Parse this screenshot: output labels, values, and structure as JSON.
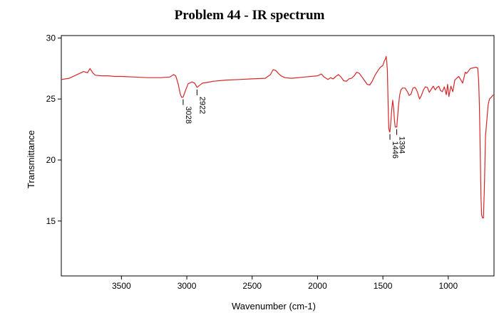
{
  "chart_data": {
    "type": "line",
    "title": "Problem 44 - IR spectrum",
    "xlabel": "Wavenumber (cm-1)",
    "ylabel": "Transmittance",
    "xlim": [
      3960,
      650
    ],
    "ylim": [
      10.5,
      30.2
    ],
    "x_reversed": true,
    "x_ticks": [
      3500,
      3000,
      2500,
      2000,
      1500,
      1000
    ],
    "y_ticks": [
      15,
      20,
      25,
      30
    ],
    "grid": false,
    "series": [
      {
        "color": "#d62728",
        "points": [
          [
            3960,
            26.6
          ],
          [
            3900,
            26.7
          ],
          [
            3850,
            26.95
          ],
          [
            3820,
            27.1
          ],
          [
            3790,
            27.25
          ],
          [
            3760,
            27.15
          ],
          [
            3740,
            27.5
          ],
          [
            3720,
            27.15
          ],
          [
            3700,
            26.95
          ],
          [
            3650,
            26.9
          ],
          [
            3600,
            26.9
          ],
          [
            3550,
            26.85
          ],
          [
            3500,
            26.85
          ],
          [
            3400,
            26.8
          ],
          [
            3300,
            26.75
          ],
          [
            3200,
            26.75
          ],
          [
            3130,
            26.8
          ],
          [
            3100,
            27.0
          ],
          [
            3085,
            26.9
          ],
          [
            3065,
            26.2
          ],
          [
            3050,
            25.4
          ],
          [
            3040,
            25.15
          ],
          [
            3028,
            25.15
          ],
          [
            3010,
            25.7
          ],
          [
            2990,
            26.25
          ],
          [
            2960,
            26.4
          ],
          [
            2940,
            26.3
          ],
          [
            2922,
            25.95
          ],
          [
            2905,
            26.1
          ],
          [
            2880,
            26.3
          ],
          [
            2850,
            26.35
          ],
          [
            2800,
            26.45
          ],
          [
            2700,
            26.55
          ],
          [
            2600,
            26.6
          ],
          [
            2500,
            26.65
          ],
          [
            2400,
            26.7
          ],
          [
            2360,
            27.0
          ],
          [
            2340,
            27.4
          ],
          [
            2320,
            27.35
          ],
          [
            2300,
            27.1
          ],
          [
            2280,
            26.9
          ],
          [
            2250,
            26.75
          ],
          [
            2200,
            26.7
          ],
          [
            2100,
            26.8
          ],
          [
            2000,
            26.9
          ],
          [
            1970,
            27.05
          ],
          [
            1950,
            26.8
          ],
          [
            1920,
            26.6
          ],
          [
            1900,
            26.75
          ],
          [
            1880,
            26.65
          ],
          [
            1860,
            26.85
          ],
          [
            1840,
            27.0
          ],
          [
            1820,
            26.8
          ],
          [
            1800,
            26.5
          ],
          [
            1780,
            26.45
          ],
          [
            1760,
            26.65
          ],
          [
            1740,
            26.7
          ],
          [
            1720,
            26.9
          ],
          [
            1700,
            27.2
          ],
          [
            1680,
            27.1
          ],
          [
            1660,
            26.8
          ],
          [
            1640,
            26.5
          ],
          [
            1620,
            26.2
          ],
          [
            1600,
            26.15
          ],
          [
            1580,
            26.5
          ],
          [
            1560,
            26.95
          ],
          [
            1540,
            27.3
          ],
          [
            1520,
            27.6
          ],
          [
            1500,
            27.75
          ],
          [
            1490,
            28.1
          ],
          [
            1480,
            28.3
          ],
          [
            1475,
            28.5
          ],
          [
            1470,
            28.0
          ],
          [
            1466,
            27.4
          ],
          [
            1460,
            24.5
          ],
          [
            1455,
            22.6
          ],
          [
            1449,
            22.3
          ],
          [
            1446,
            22.3
          ],
          [
            1440,
            23.0
          ],
          [
            1432,
            24.2
          ],
          [
            1425,
            24.9
          ],
          [
            1418,
            24.2
          ],
          [
            1412,
            23.3
          ],
          [
            1406,
            22.7
          ],
          [
            1400,
            22.7
          ],
          [
            1394,
            22.7
          ],
          [
            1388,
            23.5
          ],
          [
            1380,
            24.5
          ],
          [
            1372,
            25.3
          ],
          [
            1362,
            25.75
          ],
          [
            1350,
            25.9
          ],
          [
            1330,
            25.9
          ],
          [
            1310,
            25.55
          ],
          [
            1300,
            25.3
          ],
          [
            1285,
            25.4
          ],
          [
            1270,
            25.9
          ],
          [
            1255,
            25.95
          ],
          [
            1245,
            25.8
          ],
          [
            1235,
            25.55
          ],
          [
            1220,
            25.0
          ],
          [
            1205,
            25.3
          ],
          [
            1190,
            25.75
          ],
          [
            1175,
            26.0
          ],
          [
            1160,
            25.95
          ],
          [
            1145,
            25.55
          ],
          [
            1130,
            25.8
          ],
          [
            1115,
            26.05
          ],
          [
            1100,
            25.75
          ],
          [
            1085,
            25.95
          ],
          [
            1072,
            26.05
          ],
          [
            1060,
            25.7
          ],
          [
            1045,
            25.6
          ],
          [
            1030,
            26.0
          ],
          [
            1015,
            25.35
          ],
          [
            1005,
            26.2
          ],
          [
            995,
            25.2
          ],
          [
            980,
            26.05
          ],
          [
            965,
            25.6
          ],
          [
            950,
            26.55
          ],
          [
            935,
            26.7
          ],
          [
            920,
            26.85
          ],
          [
            905,
            26.6
          ],
          [
            890,
            26.3
          ],
          [
            870,
            27.2
          ],
          [
            860,
            27.1
          ],
          [
            845,
            27.3
          ],
          [
            830,
            27.5
          ],
          [
            810,
            27.55
          ],
          [
            790,
            27.6
          ],
          [
            775,
            27.55
          ],
          [
            768,
            26.6
          ],
          [
            762,
            24.5
          ],
          [
            756,
            21.0
          ],
          [
            750,
            17.0
          ],
          [
            745,
            15.5
          ],
          [
            738,
            15.25
          ],
          [
            731,
            15.25
          ],
          [
            724,
            17.5
          ],
          [
            715,
            22.0
          ],
          [
            703,
            23.5
          ],
          [
            695,
            24.5
          ],
          [
            685,
            25.0
          ],
          [
            670,
            25.15
          ],
          [
            660,
            25.3
          ],
          [
            650,
            25.35
          ]
        ]
      }
    ],
    "annotations": [
      {
        "x": 3028,
        "y": 25.15,
        "text": "3028"
      },
      {
        "x": 2922,
        "y": 25.95,
        "text": "2922"
      },
      {
        "x": 1446,
        "y": 22.3,
        "text": "1446"
      },
      {
        "x": 1394,
        "y": 22.7,
        "text": "1394"
      }
    ]
  }
}
